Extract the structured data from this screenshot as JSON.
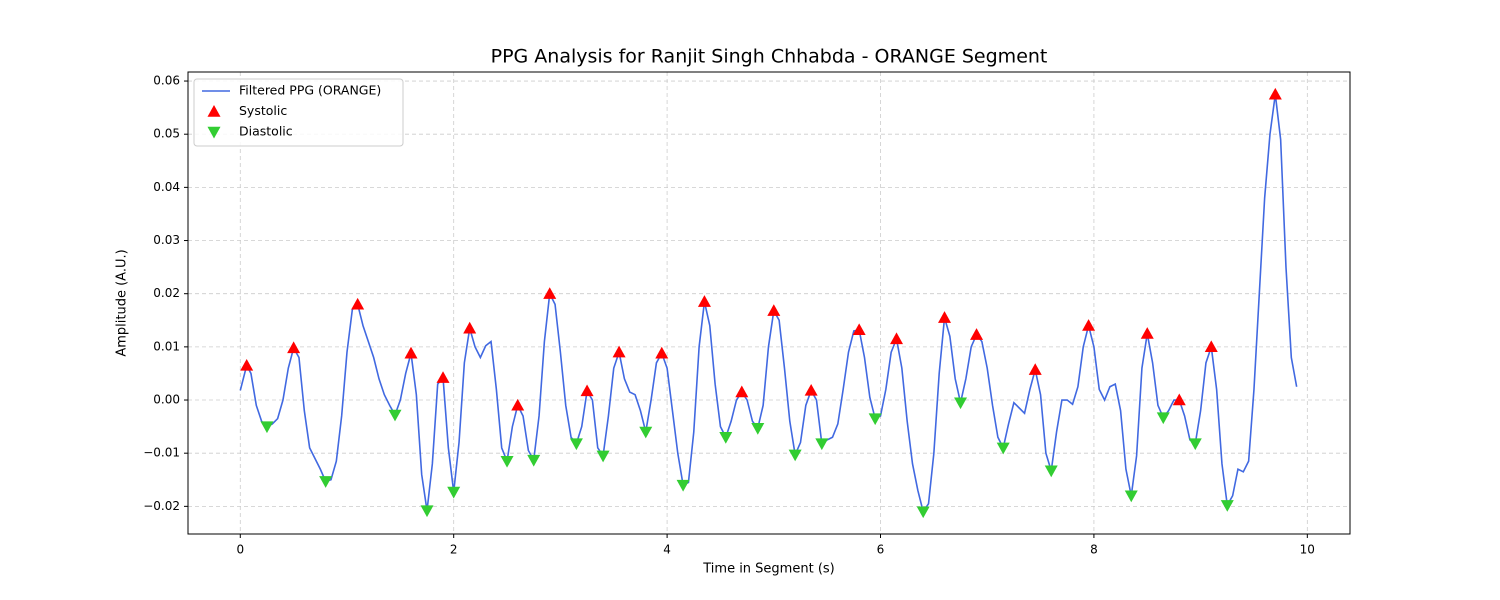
{
  "chart_data": {
    "type": "line",
    "title": "PPG Analysis for Ranjit Singh Chhabda - ORANGE Segment",
    "x_label": "Time in Segment (s)",
    "y_label": "Amplitude (A.U.)",
    "xlim": [
      -0.49,
      10.4
    ],
    "ylim": [
      -0.0252,
      0.0617
    ],
    "xticks": [
      0,
      2,
      4,
      6,
      8,
      10
    ],
    "yticks": [
      {
        "value": -0.02,
        "label": "−0.02"
      },
      {
        "value": -0.01,
        "label": "−0.01"
      },
      {
        "value": 0,
        "label": "0.00"
      },
      0.01,
      0.02,
      0.03,
      0.04,
      0.05,
      0.06
    ],
    "grid": true,
    "legend": "upper left",
    "series": [
      {
        "name": "Filtered PPG (ORANGE)",
        "color": "#4169e1",
        "marker": "none",
        "x": [
          0,
          0.06,
          0.1,
          0.15,
          0.2,
          0.25,
          0.3,
          0.35,
          0.4,
          0.45,
          0.5,
          0.55,
          0.6,
          0.65,
          0.7,
          0.75,
          0.8,
          0.85,
          0.9,
          0.95,
          1.0,
          1.05,
          1.1,
          1.15,
          1.2,
          1.25,
          1.3,
          1.35,
          1.4,
          1.45,
          1.5,
          1.55,
          1.6,
          1.65,
          1.7,
          1.75,
          1.8,
          1.85,
          1.9,
          1.95,
          2.0,
          2.05,
          2.1,
          2.15,
          2.2,
          2.25,
          2.3,
          2.35,
          2.4,
          2.45,
          2.5,
          2.55,
          2.6,
          2.65,
          2.7,
          2.75,
          2.8,
          2.85,
          2.9,
          2.95,
          3.0,
          3.05,
          3.1,
          3.15,
          3.2,
          3.25,
          3.3,
          3.35,
          3.4,
          3.45,
          3.5,
          3.55,
          3.6,
          3.65,
          3.7,
          3.75,
          3.8,
          3.85,
          3.9,
          3.95,
          4.0,
          4.05,
          4.1,
          4.15,
          4.2,
          4.25,
          4.3,
          4.35,
          4.4,
          4.45,
          4.5,
          4.55,
          4.6,
          4.65,
          4.7,
          4.75,
          4.8,
          4.85,
          4.9,
          4.95,
          5.0,
          5.05,
          5.1,
          5.15,
          5.2,
          5.25,
          5.3,
          5.35,
          5.4,
          5.45,
          5.5,
          5.55,
          5.6,
          5.65,
          5.7,
          5.75,
          5.8,
          5.85,
          5.9,
          5.95,
          6.0,
          6.05,
          6.1,
          6.15,
          6.2,
          6.25,
          6.3,
          6.35,
          6.4,
          6.45,
          6.5,
          6.55,
          6.6,
          6.65,
          6.7,
          6.75,
          6.8,
          6.85,
          6.9,
          6.95,
          7.0,
          7.05,
          7.1,
          7.15,
          7.2,
          7.25,
          7.3,
          7.35,
          7.4,
          7.45,
          7.5,
          7.55,
          7.6,
          7.65,
          7.7,
          7.75,
          7.8,
          7.85,
          7.9,
          7.95,
          8.0,
          8.05,
          8.1,
          8.15,
          8.2,
          8.25,
          8.3,
          8.35,
          8.4,
          8.45,
          8.5,
          8.55,
          8.6,
          8.65,
          8.7,
          8.75,
          8.8,
          8.85,
          8.9,
          8.95,
          9.0,
          9.05,
          9.1,
          9.15,
          9.2,
          9.25,
          9.3,
          9.35,
          9.4,
          9.45,
          9.5,
          9.55,
          9.6,
          9.65,
          9.7,
          9.75,
          9.8,
          9.85,
          9.9
        ],
        "values": [
          0.0018,
          0.0065,
          0.005,
          -0.001,
          -0.004,
          -0.005,
          -0.0045,
          -0.0035,
          0.0,
          0.006,
          0.0098,
          0.008,
          -0.002,
          -0.009,
          -0.011,
          -0.013,
          -0.0153,
          -0.015,
          -0.0115,
          -0.003,
          0.009,
          0.017,
          0.018,
          0.014,
          0.011,
          0.008,
          0.004,
          0.001,
          -0.001,
          -0.0028,
          0.0,
          0.005,
          0.0088,
          0.001,
          -0.014,
          -0.0208,
          -0.012,
          0.003,
          0.0042,
          -0.009,
          -0.0173,
          -0.008,
          0.007,
          0.0135,
          0.01,
          0.008,
          0.0102,
          0.011,
          0.002,
          -0.009,
          -0.0115,
          -0.005,
          -0.001,
          -0.003,
          -0.0095,
          -0.0113,
          -0.003,
          0.011,
          0.02,
          0.018,
          0.009,
          -0.001,
          -0.007,
          -0.0082,
          -0.005,
          0.0017,
          0.0,
          -0.009,
          -0.0105,
          -0.003,
          0.006,
          0.009,
          0.004,
          0.0015,
          0.001,
          -0.002,
          -0.006,
          0.0,
          0.007,
          0.0088,
          0.006,
          -0.002,
          -0.01,
          -0.016,
          -0.0155,
          -0.006,
          0.01,
          0.0185,
          0.014,
          0.003,
          -0.005,
          -0.007,
          -0.004,
          0.0,
          0.0015,
          0.0,
          -0.004,
          -0.0053,
          -0.001,
          0.01,
          0.0168,
          0.015,
          0.006,
          -0.004,
          -0.0103,
          -0.008,
          -0.001,
          0.0018,
          0.0,
          -0.0082,
          -0.0075,
          -0.007,
          -0.0045,
          0.002,
          0.009,
          0.013,
          0.0132,
          0.008,
          0.0005,
          -0.0035,
          -0.003,
          0.002,
          0.009,
          0.0115,
          0.006,
          -0.004,
          -0.012,
          -0.017,
          -0.021,
          -0.0195,
          -0.01,
          0.005,
          0.0155,
          0.012,
          0.004,
          -0.0005,
          0.004,
          0.01,
          0.0123,
          0.011,
          0.006,
          -0.001,
          -0.007,
          -0.009,
          -0.0045,
          -0.0005,
          -0.0015,
          -0.0025,
          0.002,
          0.0057,
          0.001,
          -0.01,
          -0.0133,
          -0.006,
          0.0,
          0.0,
          -0.0008,
          0.0025,
          0.01,
          0.014,
          0.01,
          0.002,
          0.0,
          0.0025,
          0.003,
          -0.002,
          -0.013,
          -0.018,
          -0.0105,
          0.006,
          0.0125,
          0.007,
          -0.001,
          -0.0033,
          -0.002,
          0.0,
          0.0,
          -0.003,
          -0.0075,
          -0.0082,
          -0.002,
          0.007,
          0.01,
          0.002,
          -0.012,
          -0.0198,
          -0.018,
          -0.013,
          -0.0135,
          -0.0115,
          0.002,
          0.02,
          0.038,
          0.05,
          0.0575,
          0.049,
          0.025,
          0.008,
          0.0025
        ]
      },
      {
        "name": "Systolic",
        "color": "#ff0000",
        "marker": "triangle-up",
        "x": [
          0.06,
          0.5,
          1.1,
          1.6,
          1.9,
          2.15,
          2.6,
          2.9,
          3.25,
          3.55,
          3.95,
          4.35,
          4.7,
          5.0,
          5.35,
          5.8,
          6.15,
          6.6,
          6.9,
          7.45,
          7.95,
          8.5,
          8.8,
          9.1,
          9.7
        ],
        "values": [
          0.0065,
          0.0098,
          0.018,
          0.0088,
          0.0042,
          0.0135,
          -0.001,
          0.02,
          0.0017,
          0.009,
          0.0088,
          0.0185,
          0.0015,
          0.0168,
          0.0018,
          0.0132,
          0.0115,
          0.0155,
          0.0123,
          0.0057,
          0.014,
          0.0125,
          0.0,
          0.01,
          0.0575
        ]
      },
      {
        "name": "Diastolic",
        "color": "#32cd32",
        "marker": "triangle-down",
        "x": [
          0.25,
          0.8,
          1.45,
          1.75,
          2.0,
          2.5,
          2.75,
          3.15,
          3.4,
          3.8,
          4.15,
          4.55,
          4.85,
          5.2,
          5.45,
          5.95,
          6.4,
          6.75,
          7.15,
          7.6,
          8.35,
          8.65,
          8.95,
          9.25
        ],
        "values": [
          -0.005,
          -0.0153,
          -0.0028,
          -0.0208,
          -0.0173,
          -0.0115,
          -0.0113,
          -0.0082,
          -0.0105,
          -0.006,
          -0.016,
          -0.007,
          -0.0053,
          -0.0103,
          -0.0082,
          -0.0035,
          -0.021,
          -0.0005,
          -0.009,
          -0.0133,
          -0.018,
          -0.0033,
          -0.0082,
          -0.0198
        ]
      }
    ]
  }
}
